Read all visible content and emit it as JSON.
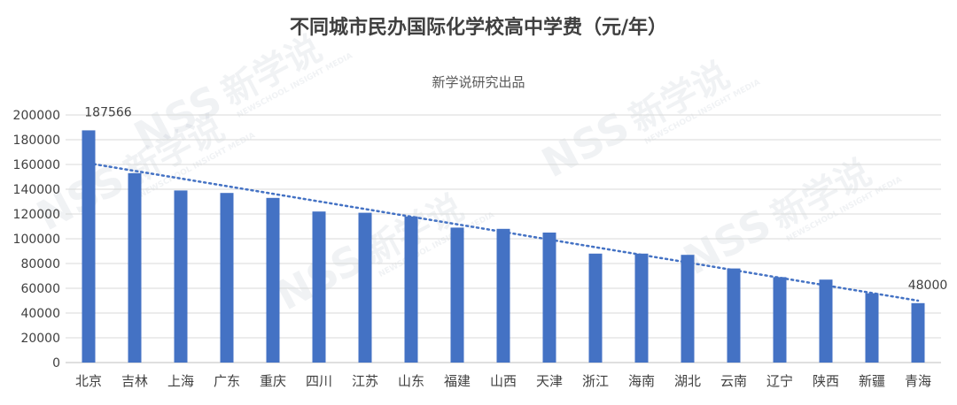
{
  "chart_data": {
    "type": "bar",
    "title": "不同城市民办国际化学校高中学费（元/年）",
    "subtitle": "新学说研究出品",
    "categories": [
      "北京",
      "吉林",
      "上海",
      "广东",
      "重庆",
      "四川",
      "江苏",
      "山东",
      "福建",
      "山西",
      "天津",
      "浙江",
      "海南",
      "湖北",
      "云南",
      "辽宁",
      "陕西",
      "新疆",
      "青海"
    ],
    "values": [
      187566,
      153000,
      139000,
      137000,
      133000,
      122000,
      121000,
      118000,
      109000,
      108000,
      105000,
      88000,
      88000,
      87000,
      76000,
      69000,
      67000,
      56000,
      48000
    ],
    "ylim": [
      0,
      200000
    ],
    "yticks": [
      0,
      20000,
      40000,
      60000,
      80000,
      100000,
      120000,
      140000,
      160000,
      180000,
      200000
    ],
    "grid": true,
    "trendline": {
      "type": "linear",
      "style": "dotted",
      "start_value": 161000,
      "end_value": 50000
    },
    "data_labels": [
      {
        "category": "北京",
        "text": "187566"
      },
      {
        "category": "青海",
        "text": "48000"
      }
    ],
    "colors": {
      "bar": "#4472c4",
      "trendline": "#4472c4"
    }
  },
  "watermark": {
    "text": "新学说",
    "sub_text": "NEWSCHOOL INSIGHT MEDIA",
    "logo": "NSS"
  }
}
